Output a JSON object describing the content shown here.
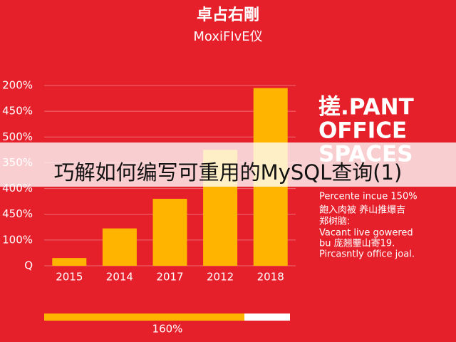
{
  "chart_data": {
    "type": "bar",
    "title": "卓占右剛",
    "subtitle": "MoxiFIvE仪",
    "categories": [
      "2015",
      "2014",
      "2017",
      "2012",
      "2018"
    ],
    "values": [
      0.3,
      1.45,
      2.6,
      4.5,
      6.9
    ],
    "color": "#ffb400",
    "ylim": [
      0,
      7
    ],
    "yticks": [
      {
        "value": 0,
        "label": "Q"
      },
      {
        "value": 1,
        "label": "100%"
      },
      {
        "value": 2,
        "label": "450%"
      },
      {
        "value": 3,
        "label": "400%"
      },
      {
        "value": 4,
        "label": "350%"
      },
      {
        "value": 5,
        "label": "500%"
      },
      {
        "value": 6,
        "label": "450%"
      },
      {
        "value": 7,
        "label": "200%"
      }
    ],
    "grid": true
  },
  "side_panel": {
    "heading": [
      "搓.PANT",
      "OFFICE",
      "SPACES"
    ],
    "lines": [
      "Percente incue 150%",
      "飽入肉被  养山推爆吉",
      "郑树脑:",
      "Vacant live gowered",
      "bu 庞翘壨山寄19.",
      "Pircasntly office joal."
    ]
  },
  "progress": {
    "label": "160%"
  },
  "caption": "巧解如何编写可重用的MySQL查询(1)"
}
